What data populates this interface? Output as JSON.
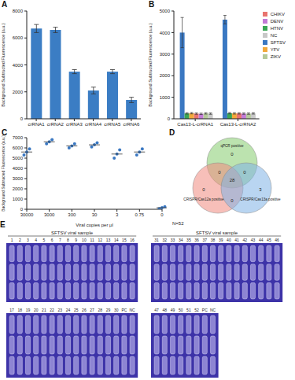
{
  "chart_data": [
    {
      "panel": "A",
      "type": "bar",
      "categories": [
        "crRNA1",
        "crRNA2",
        "crRNA3",
        "crRNA4",
        "crRNA5",
        "crRNA6"
      ],
      "values": [
        6700,
        6600,
        3500,
        2100,
        3500,
        1400
      ],
      "errors": [
        300,
        200,
        150,
        250,
        150,
        200
      ],
      "color": "#3b7dc4",
      "y_label": "Background Subtracted Fluorescence (a.u.)",
      "ylim": [
        0,
        8000
      ],
      "yticks": [
        0,
        2000,
        4000,
        6000,
        8000
      ],
      "grid": false
    },
    {
      "panel": "B",
      "type": "bar",
      "categories": [
        "Cas13-L-crRNA1",
        "Cas13-L-crRNA2"
      ],
      "series": [
        {
          "name": "SFTSV",
          "color": "#3a78c2",
          "values": [
            4000,
            4600
          ],
          "errors": [
            700,
            200
          ]
        },
        {
          "name": "HTNV",
          "color": "#3aa655",
          "values": [
            250,
            260
          ],
          "errors": [
            30,
            30
          ]
        },
        {
          "name": "YFV",
          "color": "#f2a93b",
          "values": [
            260,
            250
          ],
          "errors": [
            30,
            30
          ]
        },
        {
          "name": "CHIKV",
          "color": "#e8746f",
          "values": [
            240,
            250
          ],
          "errors": [
            30,
            30
          ]
        },
        {
          "name": "DENV",
          "color": "#c27bd6",
          "values": [
            230,
            240
          ],
          "errors": [
            30,
            30
          ]
        },
        {
          "name": "ZIKV",
          "color": "#b5c99a",
          "values": [
            250,
            240
          ],
          "errors": [
            30,
            30
          ]
        },
        {
          "name": "NC",
          "color": "#c8c8c8",
          "values": [
            240,
            250
          ],
          "errors": [
            30,
            30
          ]
        }
      ],
      "y_label": "Background Subtracted Fluorescence (a.u.)",
      "ylim": [
        0,
        5000
      ],
      "yticks": [
        0,
        1000,
        2000,
        3000,
        4000,
        5000
      ],
      "legend": "right",
      "grid": false
    },
    {
      "panel": "C",
      "type": "scatter",
      "categories": [
        "30000",
        "3000",
        "300",
        "30",
        "3",
        "0.75",
        "0"
      ],
      "values": [
        [
          5300,
          5600,
          5900
        ],
        [
          6400,
          6600,
          6800
        ],
        [
          6000,
          6200,
          6400
        ],
        [
          6100,
          6300,
          6500
        ],
        [
          5000,
          5400,
          5800
        ],
        [
          5300,
          5600,
          5900
        ],
        [
          50,
          150,
          250
        ]
      ],
      "means": [
        5600,
        6600,
        6200,
        6300,
        5400,
        5600,
        150
      ],
      "color": "#3a78c2",
      "x_label": "Viral copies per μl",
      "y_label": "Background Subtracted Fluorescence (a.u.)",
      "ylim": [
        0,
        7000
      ],
      "yticks": [
        0,
        1000,
        2000,
        3000,
        4000,
        5000,
        6000,
        7000
      ],
      "grid": false
    }
  ],
  "venn": {
    "panel": "D",
    "sets": [
      {
        "label": "qPCR positive",
        "color": "#8fd17a"
      },
      {
        "label": "CRISPR/Cas12a positive",
        "color": "#f08a80"
      },
      {
        "label": "CRISPR/Cas13a positive",
        "color": "#7fb2e6"
      }
    ],
    "regions": {
      "qpcr_only": 0,
      "qpcr_cas12a": 0,
      "qpcr_cas13a": 0,
      "all_three": 28,
      "cas12a_cas13a": 0,
      "cas12a_only": 0,
      "cas13a_only": 3
    },
    "n_label": "N=52"
  },
  "photos": {
    "panel": "E",
    "panels": [
      {
        "header": "SFTSV viral sample",
        "labels": [
          "1",
          "2",
          "3",
          "4",
          "5",
          "6",
          "7",
          "8",
          "9",
          "10",
          "11",
          "12",
          "13",
          "14",
          "15",
          "16"
        ]
      },
      {
        "header": "SFTSV viral sample",
        "labels": [
          "31",
          "32",
          "33",
          "34",
          "35",
          "36",
          "37",
          "38",
          "39",
          "40",
          "41",
          "42",
          "43",
          "44",
          "45",
          "46"
        ]
      },
      {
        "labels": [
          "17",
          "18",
          "19",
          "20",
          "21",
          "22",
          "23",
          "24",
          "25",
          "26",
          "27",
          "28",
          "29",
          "30",
          "PC",
          "NC"
        ]
      },
      {
        "labels": [
          "47",
          "48",
          "49",
          "50",
          "51",
          "52",
          "PC",
          "NC"
        ]
      }
    ]
  }
}
